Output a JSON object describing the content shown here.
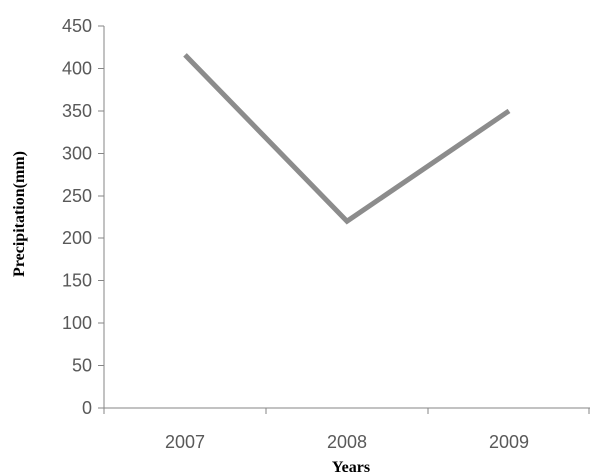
{
  "chart_data": {
    "type": "line",
    "title": "",
    "xlabel": "Years",
    "ylabel": "Precipitation(mm)",
    "categories": [
      "2007",
      "2008",
      "2009"
    ],
    "series": [
      {
        "values": [
          416,
          220,
          350
        ]
      }
    ],
    "ylim": [
      0,
      450
    ],
    "yticks": [
      0,
      50,
      100,
      150,
      200,
      250,
      300,
      350,
      400,
      450
    ],
    "grid": false,
    "legend": "none",
    "colors": {
      "series": "#8c8c8c",
      "axis": "#868686",
      "tick_text": "#595959",
      "axis_title": "#000000"
    }
  }
}
